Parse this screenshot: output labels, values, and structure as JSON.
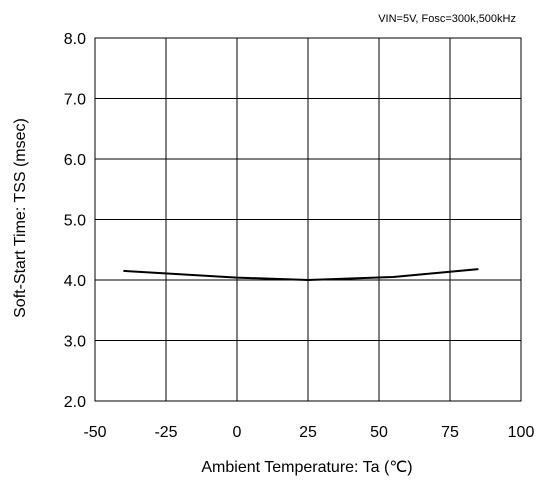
{
  "chart_data": {
    "type": "line",
    "title": "",
    "condition_note": "VIN=5V, Fosc=300k,500kHz",
    "xlabel": "Ambient Temperature: Ta (℃)",
    "ylabel": "Soft-Start Time: TSS (msec)",
    "xlim": [
      -50,
      100
    ],
    "ylim": [
      2.0,
      8.0
    ],
    "x_ticks": [
      -50,
      -25,
      0,
      25,
      50,
      75,
      100
    ],
    "x_tick_labels": [
      "-50",
      "-25",
      "0",
      "25",
      "50",
      "75",
      "100"
    ],
    "y_ticks": [
      2.0,
      3.0,
      4.0,
      5.0,
      6.0,
      7.0,
      8.0
    ],
    "y_tick_labels": [
      "2.0",
      "3.0",
      "4.0",
      "5.0",
      "6.0",
      "7.0",
      "8.0"
    ],
    "grid": true,
    "series": [
      {
        "x": [
          -40,
          0,
          25,
          55,
          85
        ],
        "y": [
          4.15,
          4.04,
          4.0,
          4.05,
          4.18
        ],
        "color": "#000000"
      }
    ]
  }
}
